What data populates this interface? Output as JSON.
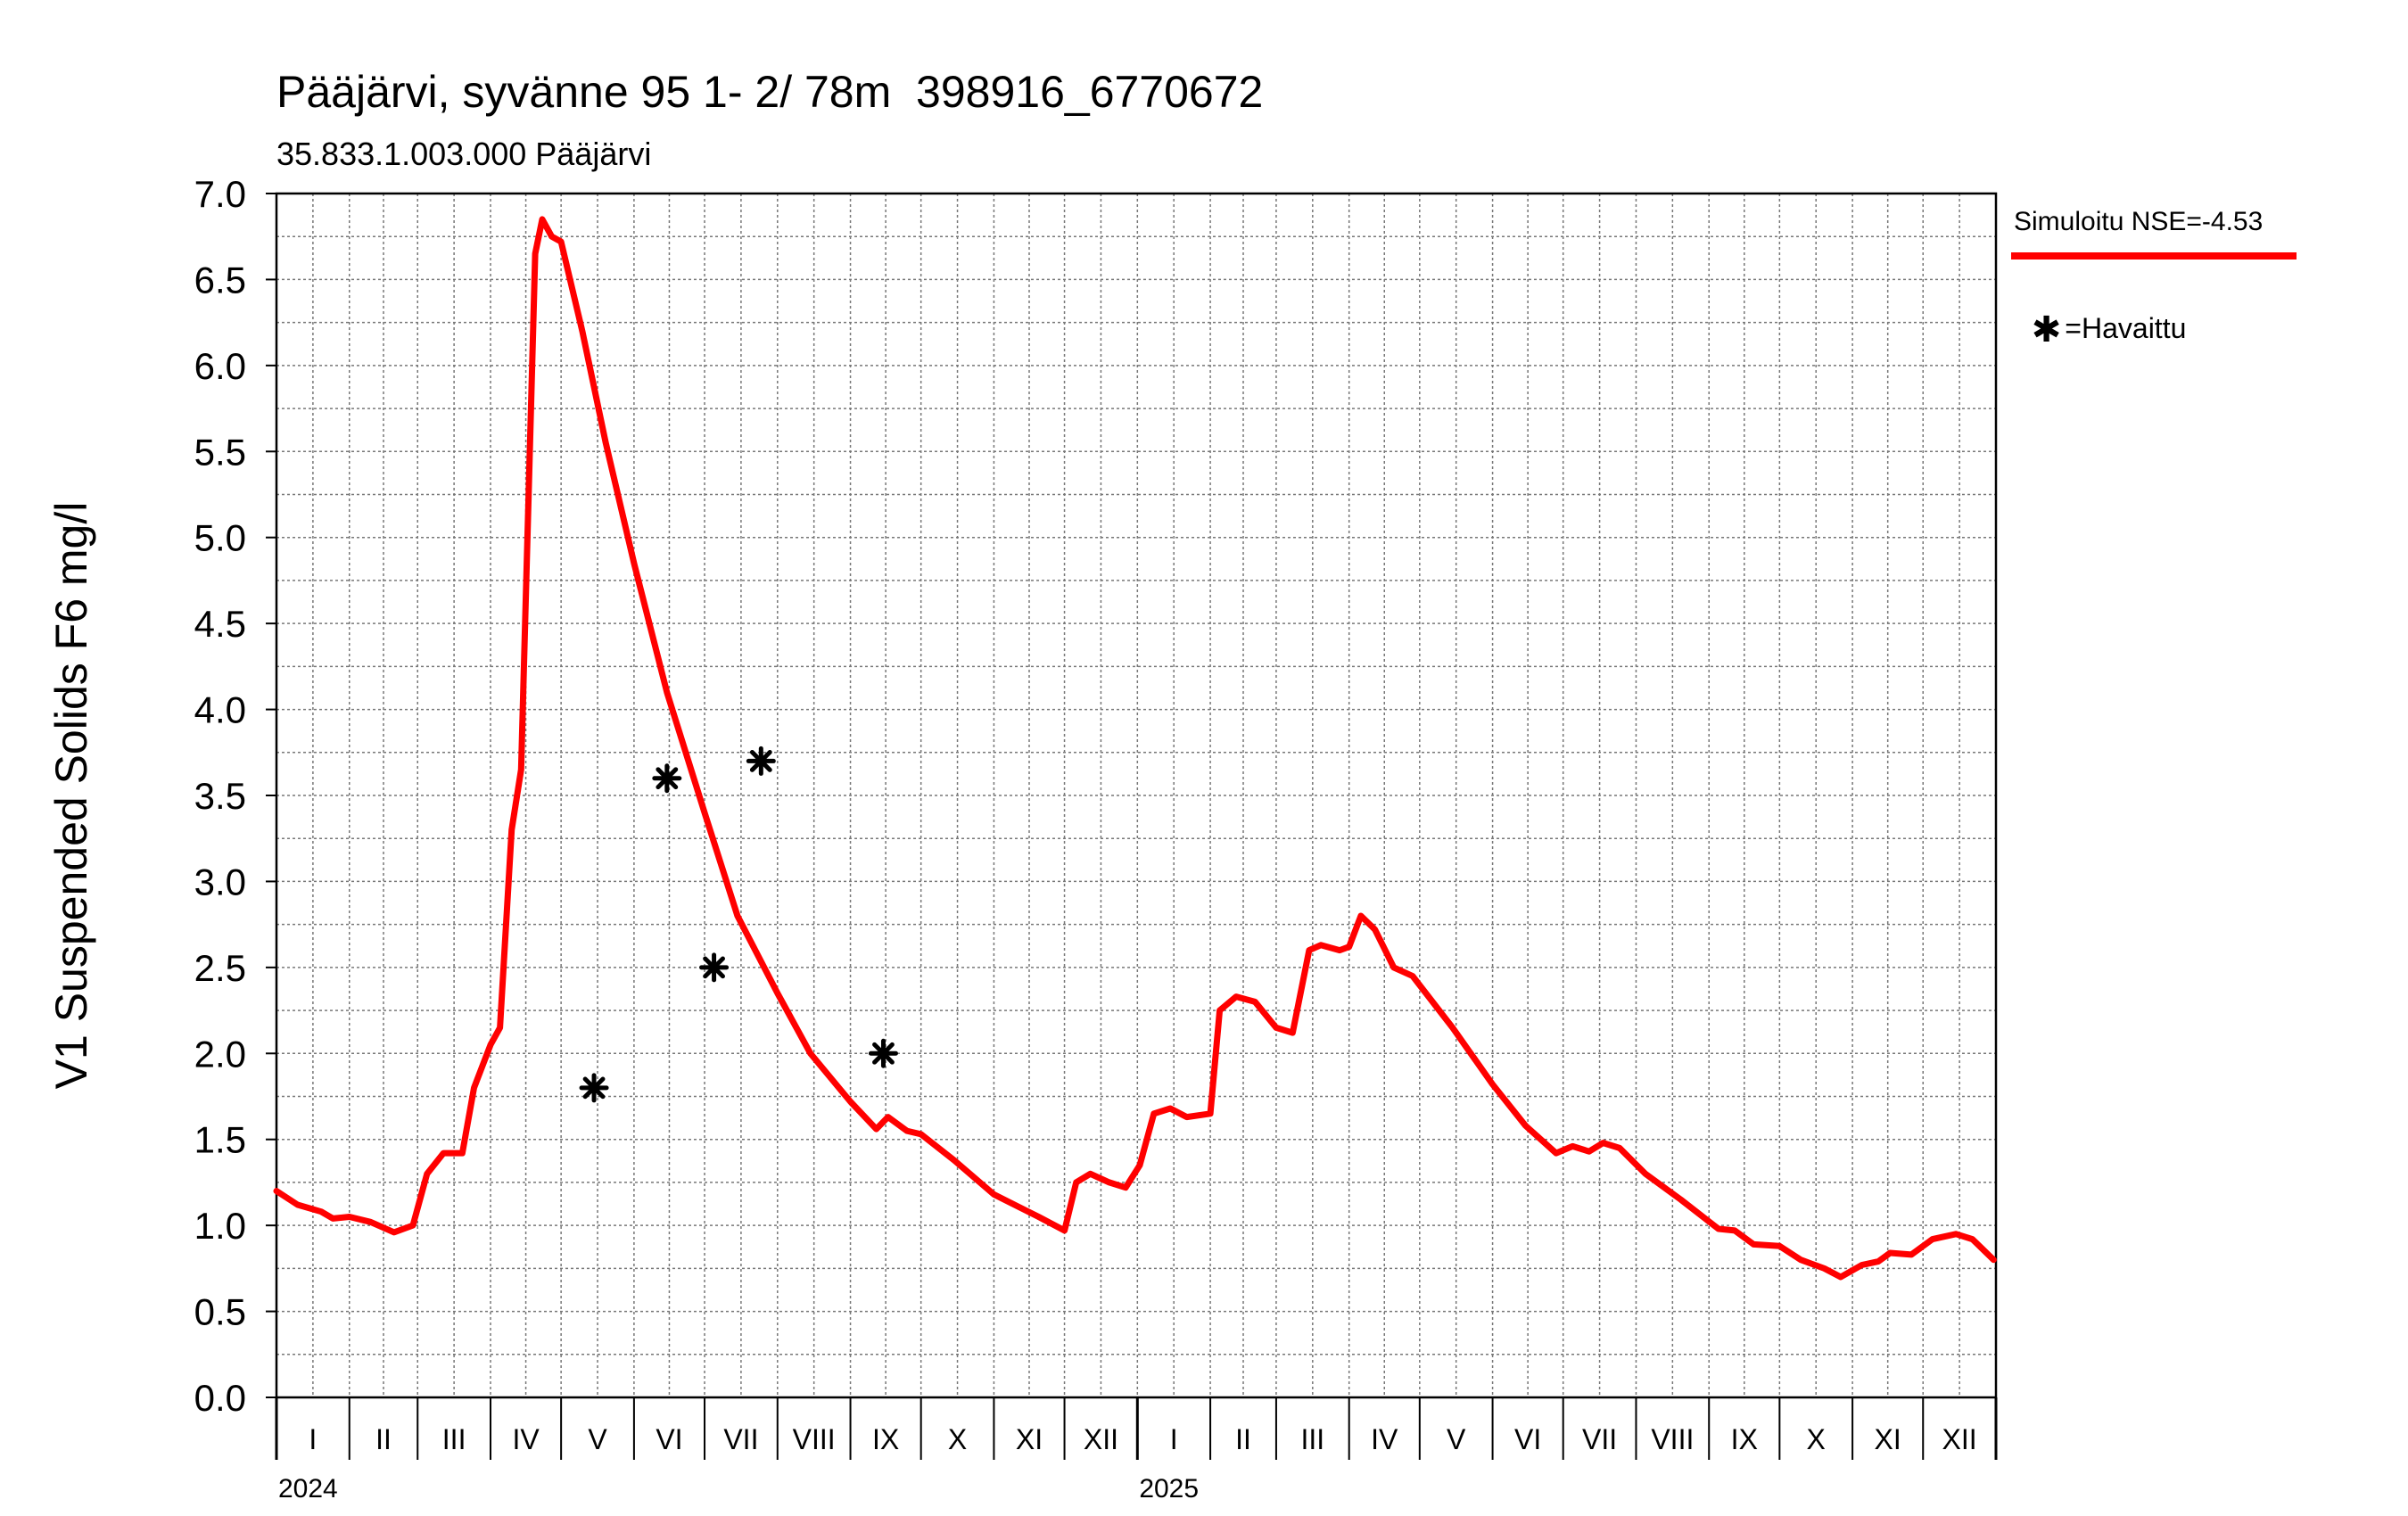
{
  "title": "Pääjärvi, syvänne 95 1- 2/ 78m  398916_6770672",
  "subtitle": "35.833.1.003.000 Pääjärvi",
  "legend": {
    "simulated_label": "Simuloitu NSE=-4.53",
    "observed_label": "=Havaittu",
    "simulated_color": "#ff0000",
    "observed_color": "#000000"
  },
  "chart_data": {
    "type": "line",
    "title": "Pääjärvi, syvänne 95 1- 2/ 78m  398916_6770672",
    "subtitle": "35.833.1.003.000 Pääjärvi",
    "ylabel": "V1 Suspended Solids F6 mg/l",
    "xlabel": "",
    "ylim": [
      0,
      7.0
    ],
    "xlim": [
      "2024-01-01",
      "2025-12-31"
    ],
    "yticks": [
      "0.0",
      "0.5",
      "1.0",
      "1.5",
      "2.0",
      "2.5",
      "3.0",
      "3.5",
      "4.0",
      "4.5",
      "5.0",
      "5.5",
      "6.0",
      "6.5",
      "7.0"
    ],
    "month_labels": [
      "I",
      "II",
      "III",
      "IV",
      "V",
      "VI",
      "VII",
      "VIII",
      "IX",
      "X",
      "XI",
      "XII",
      "I",
      "II",
      "III",
      "IV",
      "V",
      "VI",
      "VII",
      "VIII",
      "IX",
      "X",
      "XI",
      "XII"
    ],
    "year_labels": [
      "2024",
      "2025"
    ],
    "grid": true,
    "legend_position": "right",
    "series": [
      {
        "name": "Simuloitu NSE=-4.53",
        "type": "line",
        "color": "#ff0000",
        "points": [
          [
            "2024-01-01",
            1.2
          ],
          [
            "2024-01-10",
            1.12
          ],
          [
            "2024-01-20",
            1.08
          ],
          [
            "2024-01-25",
            1.04
          ],
          [
            "2024-02-01",
            1.05
          ],
          [
            "2024-02-10",
            1.02
          ],
          [
            "2024-02-20",
            0.96
          ],
          [
            "2024-02-28",
            1.0
          ],
          [
            "2024-03-05",
            1.3
          ],
          [
            "2024-03-12",
            1.42
          ],
          [
            "2024-03-20",
            1.42
          ],
          [
            "2024-03-25",
            1.8
          ],
          [
            "2024-04-01",
            2.05
          ],
          [
            "2024-04-05",
            2.15
          ],
          [
            "2024-04-10",
            3.3
          ],
          [
            "2024-04-14",
            3.65
          ],
          [
            "2024-04-20",
            6.65
          ],
          [
            "2024-04-23",
            6.85
          ],
          [
            "2024-04-27",
            6.75
          ],
          [
            "2024-05-01",
            6.72
          ],
          [
            "2024-05-10",
            6.2
          ],
          [
            "2024-05-20",
            5.55
          ],
          [
            "2024-06-01",
            4.85
          ],
          [
            "2024-06-15",
            4.1
          ],
          [
            "2024-07-01",
            3.4
          ],
          [
            "2024-07-15",
            2.8
          ],
          [
            "2024-08-01",
            2.35
          ],
          [
            "2024-08-15",
            2.0
          ],
          [
            "2024-09-01",
            1.72
          ],
          [
            "2024-09-12",
            1.56
          ],
          [
            "2024-09-17",
            1.63
          ],
          [
            "2024-09-25",
            1.55
          ],
          [
            "2024-10-01",
            1.53
          ],
          [
            "2024-10-15",
            1.38
          ],
          [
            "2024-11-01",
            1.18
          ],
          [
            "2024-11-20",
            1.05
          ],
          [
            "2024-12-01",
            0.97
          ],
          [
            "2024-12-06",
            1.25
          ],
          [
            "2024-12-12",
            1.3
          ],
          [
            "2024-12-20",
            1.25
          ],
          [
            "2024-12-27",
            1.22
          ],
          [
            "2025-01-02",
            1.35
          ],
          [
            "2025-01-08",
            1.65
          ],
          [
            "2025-01-15",
            1.68
          ],
          [
            "2025-01-22",
            1.63
          ],
          [
            "2025-02-01",
            1.65
          ],
          [
            "2025-02-05",
            2.25
          ],
          [
            "2025-02-12",
            2.33
          ],
          [
            "2025-02-20",
            2.3
          ],
          [
            "2025-03-01",
            2.15
          ],
          [
            "2025-03-08",
            2.12
          ],
          [
            "2025-03-15",
            2.6
          ],
          [
            "2025-03-20",
            2.63
          ],
          [
            "2025-03-28",
            2.6
          ],
          [
            "2025-04-01",
            2.62
          ],
          [
            "2025-04-06",
            2.8
          ],
          [
            "2025-04-12",
            2.72
          ],
          [
            "2025-04-20",
            2.5
          ],
          [
            "2025-04-28",
            2.45
          ],
          [
            "2025-05-15",
            2.15
          ],
          [
            "2025-06-01",
            1.82
          ],
          [
            "2025-06-15",
            1.58
          ],
          [
            "2025-06-28",
            1.42
          ],
          [
            "2025-07-05",
            1.46
          ],
          [
            "2025-07-12",
            1.43
          ],
          [
            "2025-07-18",
            1.48
          ],
          [
            "2025-07-25",
            1.45
          ],
          [
            "2025-08-05",
            1.3
          ],
          [
            "2025-08-20",
            1.15
          ],
          [
            "2025-09-05",
            0.98
          ],
          [
            "2025-09-12",
            0.97
          ],
          [
            "2025-09-20",
            0.89
          ],
          [
            "2025-10-01",
            0.88
          ],
          [
            "2025-10-10",
            0.8
          ],
          [
            "2025-10-20",
            0.75
          ],
          [
            "2025-10-27",
            0.7
          ],
          [
            "2025-11-05",
            0.77
          ],
          [
            "2025-11-12",
            0.79
          ],
          [
            "2025-11-17",
            0.84
          ],
          [
            "2025-11-26",
            0.83
          ],
          [
            "2025-12-05",
            0.92
          ],
          [
            "2025-12-15",
            0.95
          ],
          [
            "2025-12-22",
            0.92
          ],
          [
            "2025-12-31",
            0.8
          ]
        ]
      },
      {
        "name": "Havaittu",
        "type": "scatter",
        "color": "#000000",
        "points": [
          [
            "2024-05-15",
            1.8
          ],
          [
            "2024-06-15",
            3.6
          ],
          [
            "2024-07-05",
            2.5
          ],
          [
            "2024-07-25",
            3.7
          ],
          [
            "2024-09-15",
            2.0
          ]
        ]
      }
    ]
  }
}
